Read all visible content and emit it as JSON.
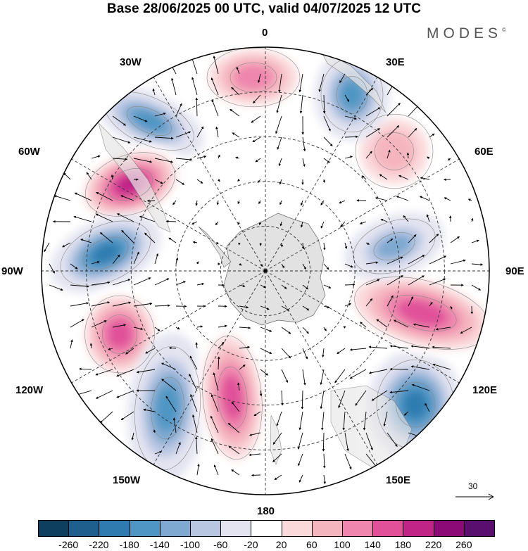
{
  "title": "Base 28/06/2025 00 UTC, valid 04/07/2025 12 UTC",
  "brand": {
    "text": "MODES",
    "mark": "©"
  },
  "longitude_labels": {
    "n0": "0",
    "n30e": "30E",
    "n60e": "60E",
    "n90e": "90E",
    "n120e": "120E",
    "n150e": "150E",
    "n180": "180",
    "n150w": "150W",
    "n120w": "120W",
    "n90w": "90W",
    "n60w": "60W",
    "n30w": "30W"
  },
  "reference_vector": {
    "label": "30"
  },
  "colorbar": {
    "ticks": [
      "-260",
      "-220",
      "-180",
      "-140",
      "-100",
      "-60",
      "-20",
      "20",
      "60",
      "100",
      "140",
      "180",
      "220",
      "260"
    ],
    "colors": [
      "#0f3f5e",
      "#1e5f8e",
      "#2f7bb0",
      "#4f96c4",
      "#7fa9d0",
      "#b8c6e2",
      "#e4e4f1",
      "#ffffff",
      "#fbd9db",
      "#f5b5bf",
      "#ef86ad",
      "#e0519a",
      "#c02487",
      "#8c0a78",
      "#5a0e6e"
    ]
  },
  "anomaly_centers": [
    {
      "id": "neg-30w",
      "sign": "negative",
      "strength": -180
    },
    {
      "id": "pos-60w",
      "sign": "positive",
      "strength": 220
    },
    {
      "id": "neg-90w",
      "sign": "negative",
      "strength": -220
    },
    {
      "id": "pos-110w",
      "sign": "positive",
      "strength": 180
    },
    {
      "id": "neg-140w",
      "sign": "negative",
      "strength": -180
    },
    {
      "id": "pos-170w",
      "sign": "positive",
      "strength": 180
    },
    {
      "id": "neg-135e",
      "sign": "negative",
      "strength": -220
    },
    {
      "id": "pos-100e",
      "sign": "positive",
      "strength": 180
    },
    {
      "id": "neg-75e",
      "sign": "negative",
      "strength": -140
    },
    {
      "id": "pos-45e",
      "sign": "positive",
      "strength": 100
    },
    {
      "id": "neg-25e",
      "sign": "negative",
      "strength": -180
    },
    {
      "id": "pos-0",
      "sign": "positive",
      "strength": 140
    }
  ]
}
